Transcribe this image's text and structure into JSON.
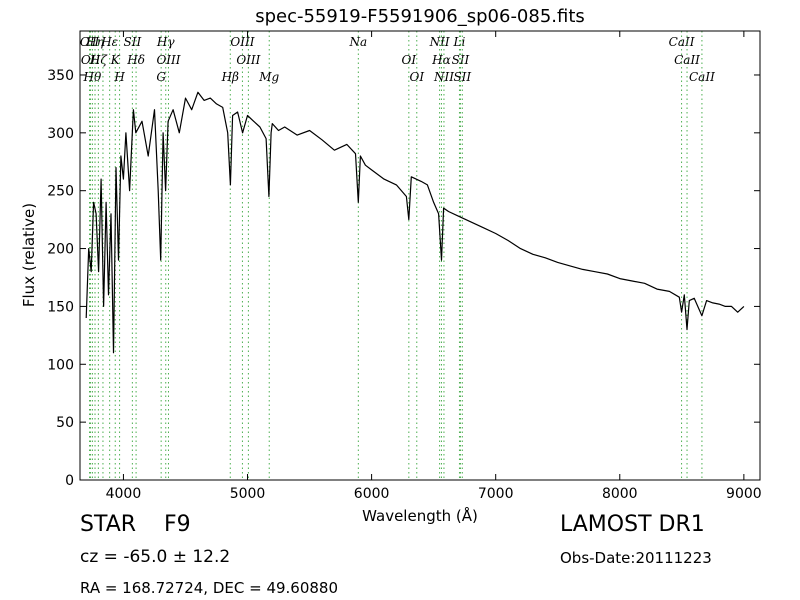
{
  "chart_data": {
    "type": "line",
    "title": "spec-55919-F5591906_sp06-085.fits",
    "xlabel": "Wavelength (Å)",
    "ylabel": "Flux (relative)",
    "xlim": [
      3650,
      9130
    ],
    "ylim": [
      0,
      388
    ],
    "xticks": [
      4000,
      5000,
      6000,
      7000,
      8000,
      9000
    ],
    "yticks": [
      0,
      50,
      100,
      150,
      200,
      250,
      300,
      350
    ],
    "grid": false,
    "series_color": "#000000",
    "line_marker_color": "#4caf50",
    "series": [
      {
        "x": [
          3700,
          3720,
          3740,
          3760,
          3780,
          3800,
          3820,
          3840,
          3860,
          3880,
          3900,
          3920,
          3940,
          3960,
          3980,
          4000,
          4020,
          4050,
          4080,
          4100,
          4150,
          4200,
          4250,
          4280,
          4300,
          4320,
          4340,
          4360,
          4400,
          4450,
          4500,
          4550,
          4600,
          4650,
          4700,
          4750,
          4800,
          4840,
          4862,
          4880,
          4920,
          4960,
          5000,
          5050,
          5100,
          5150,
          5172,
          5190,
          5200,
          5250,
          5300,
          5400,
          5500,
          5600,
          5700,
          5800,
          5870,
          5893,
          5910,
          5950,
          6000,
          6100,
          6200,
          6280,
          6300,
          6320,
          6400,
          6450,
          6500,
          6540,
          6563,
          6580,
          6620,
          6700,
          6800,
          6900,
          7000,
          7100,
          7200,
          7300,
          7400,
          7500,
          7600,
          7700,
          7800,
          7900,
          8000,
          8100,
          8200,
          8300,
          8400,
          8480,
          8498,
          8520,
          8542,
          8560,
          8600,
          8662,
          8700,
          8750,
          8800,
          8850,
          8900,
          8950,
          9000
        ],
        "y": [
          140,
          200,
          180,
          240,
          230,
          180,
          260,
          150,
          240,
          160,
          230,
          110,
          270,
          190,
          280,
          260,
          300,
          250,
          320,
          300,
          310,
          280,
          320,
          250,
          190,
          300,
          250,
          310,
          320,
          300,
          330,
          320,
          335,
          328,
          330,
          325,
          322,
          300,
          255,
          315,
          318,
          300,
          315,
          310,
          305,
          295,
          245,
          300,
          308,
          302,
          305,
          298,
          302,
          294,
          285,
          290,
          282,
          240,
          280,
          272,
          268,
          260,
          255,
          245,
          225,
          262,
          258,
          255,
          240,
          230,
          190,
          235,
          232,
          228,
          223,
          218,
          213,
          207,
          200,
          195,
          192,
          188,
          185,
          182,
          180,
          178,
          174,
          172,
          170,
          165,
          163,
          158,
          145,
          160,
          130,
          155,
          157,
          142,
          155,
          153,
          152,
          150,
          150,
          145,
          150
        ]
      }
    ],
    "line_markers": [
      {
        "wl": 3727,
        "label": "OII"
      },
      {
        "wl": 3735,
        "label": "OII"
      },
      {
        "wl": 3750,
        "label": "Hθ"
      },
      {
        "wl": 3771,
        "label": "Hη"
      },
      {
        "wl": 3798,
        "label": "Hζ"
      },
      {
        "wl": 3835,
        "label": ""
      },
      {
        "wl": 3889,
        "label": "Hε"
      },
      {
        "wl": 3934,
        "label": "K"
      },
      {
        "wl": 3969,
        "label": "H"
      },
      {
        "wl": 4072,
        "label": "SII"
      },
      {
        "wl": 4102,
        "label": "Hδ"
      },
      {
        "wl": 4304,
        "label": "G"
      },
      {
        "wl": 4341,
        "label": "Hγ"
      },
      {
        "wl": 4363,
        "label": "OIII"
      },
      {
        "wl": 4861,
        "label": "Hβ"
      },
      {
        "wl": 4959,
        "label": "OIII"
      },
      {
        "wl": 5007,
        "label": "OIII"
      },
      {
        "wl": 5175,
        "label": "Mg"
      },
      {
        "wl": 5893,
        "label": "Na"
      },
      {
        "wl": 6300,
        "label": "OI"
      },
      {
        "wl": 6364,
        "label": "OI"
      },
      {
        "wl": 6548,
        "label": "NII"
      },
      {
        "wl": 6563,
        "label": "Hα"
      },
      {
        "wl": 6583,
        "label": "NII"
      },
      {
        "wl": 6708,
        "label": "Li"
      },
      {
        "wl": 6716,
        "label": "SII"
      },
      {
        "wl": 6731,
        "label": "SII"
      },
      {
        "wl": 8498,
        "label": "CaII"
      },
      {
        "wl": 8542,
        "label": "CaII"
      },
      {
        "wl": 8662,
        "label": "CaII"
      }
    ]
  },
  "info": {
    "object_class": "STAR    F9",
    "survey": "LAMOST DR1",
    "cz": "cz = -65.0 ± 12.2",
    "obs_date": "Obs-Date:20111223",
    "radec": "RA = 168.72724, DEC = 49.60880"
  }
}
